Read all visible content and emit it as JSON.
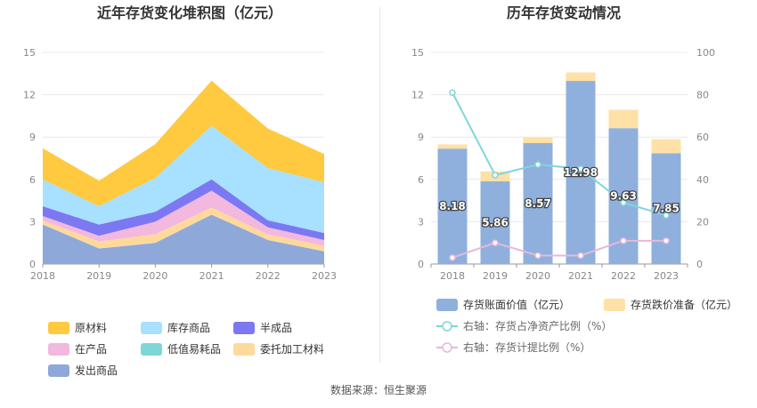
{
  "source_label": "数据来源：恒生聚源",
  "colors": {
    "原材料": "#ffc940",
    "库存商品": "#a8e0ff",
    "半成品": "#7b78f2",
    "在产品": "#f2b8dd",
    "低值易耗品": "#7fd6d6",
    "委托加工材料": "#ffd99c",
    "发出商品": "#8fa8da",
    "存货账面价值": "#8fb0dd",
    "存货跌价准备": "#ffe0a6",
    "存货占净资产比例": "#7fd6dc",
    "存货计提比例": "#e6b8dc"
  },
  "chart_data": [
    {
      "type": "area",
      "stacked": true,
      "title": "近年存货变化堆积图（亿元）",
      "x": [
        "2018",
        "2019",
        "2020",
        "2021",
        "2022",
        "2023"
      ],
      "ylim": [
        0,
        15
      ],
      "yticks": [
        0,
        3,
        6,
        9,
        12,
        15
      ],
      "grid": true,
      "legend_position": "bottom",
      "legend": [
        "原材料",
        "库存商品",
        "半成品",
        "在产品",
        "低值易耗品",
        "委托加工材料",
        "发出商品"
      ],
      "series": [
        {
          "name": "发出商品",
          "values": [
            2.8,
            1.1,
            1.5,
            3.5,
            1.7,
            0.9
          ]
        },
        {
          "name": "低值易耗品",
          "values": [
            0.0,
            0.0,
            0.0,
            0.0,
            0.0,
            0.0
          ]
        },
        {
          "name": "委托加工材料",
          "values": [
            0.3,
            0.5,
            0.6,
            0.5,
            0.4,
            0.4
          ]
        },
        {
          "name": "在产品",
          "values": [
            0.3,
            0.4,
            0.9,
            1.2,
            0.5,
            0.4
          ]
        },
        {
          "name": "半成品",
          "values": [
            0.7,
            0.8,
            0.7,
            0.8,
            0.5,
            0.5
          ]
        },
        {
          "name": "库存商品",
          "values": [
            1.9,
            1.3,
            2.4,
            3.8,
            3.7,
            3.6
          ]
        },
        {
          "name": "原材料",
          "values": [
            2.2,
            1.8,
            2.4,
            3.2,
            2.8,
            2.0
          ]
        }
      ]
    },
    {
      "type": "bar",
      "stacked": true,
      "title": "历年存货变动情况",
      "x": [
        "2018",
        "2019",
        "2020",
        "2021",
        "2022",
        "2023"
      ],
      "ylim": [
        0,
        15
      ],
      "yticks": [
        0,
        3,
        6,
        9,
        12,
        15
      ],
      "y2lim": [
        0,
        100
      ],
      "y2ticks": [
        0,
        20,
        40,
        60,
        80,
        100
      ],
      "grid": true,
      "legend_position": "bottom",
      "series": [
        {
          "name": "存货账面价值（亿元）",
          "key": "存货账面价值",
          "values": [
            8.18,
            5.86,
            8.57,
            12.98,
            9.63,
            7.85
          ],
          "labels": [
            "8.18",
            "5.86",
            "8.57",
            "12.98",
            "9.63",
            "7.85"
          ]
        },
        {
          "name": "存货跌价准备（亿元）",
          "key": "存货跌价准备",
          "values": [
            0.3,
            0.7,
            0.4,
            0.6,
            1.3,
            1.0
          ]
        }
      ],
      "line_series": [
        {
          "name": "右轴：存货占净资产比例（%）",
          "key": "存货占净资产比例",
          "values": [
            81,
            42,
            47,
            45,
            29,
            23
          ]
        },
        {
          "name": "右轴：存货计提比例（%）",
          "key": "存货计提比例",
          "values": [
            3,
            10,
            4,
            4,
            11,
            11
          ]
        }
      ]
    }
  ]
}
